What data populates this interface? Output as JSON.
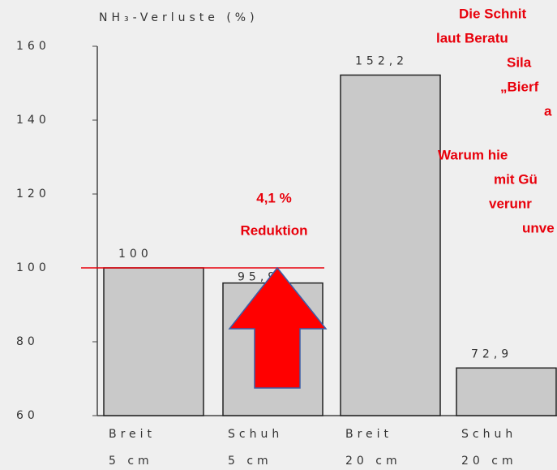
{
  "chart_data": {
    "type": "bar",
    "title": "NH₃-Verluste (%)",
    "categories": [
      [
        "Breit",
        "5 cm"
      ],
      [
        "Schuh",
        "5 cm"
      ],
      [
        "Breit",
        "20 cm"
      ],
      [
        "Schuh",
        "20 cm"
      ]
    ],
    "values": [
      100,
      95.9,
      152.2,
      72.9
    ],
    "value_labels": [
      "100",
      "95,9",
      "152,2",
      "72,9"
    ],
    "color": "#c9c9c9",
    "ylim": [
      60,
      160
    ],
    "yticks": [
      60,
      80,
      100,
      120,
      140,
      160
    ],
    "grid": false,
    "annotations": [
      "4,1 %",
      "Reduktion"
    ],
    "side_text": [
      "Die Schnit",
      "laut Beratu",
      "Sila",
      "„Bierf",
      "a",
      "Warum hie",
      "mit Gü",
      "verunr",
      "unve"
    ]
  }
}
